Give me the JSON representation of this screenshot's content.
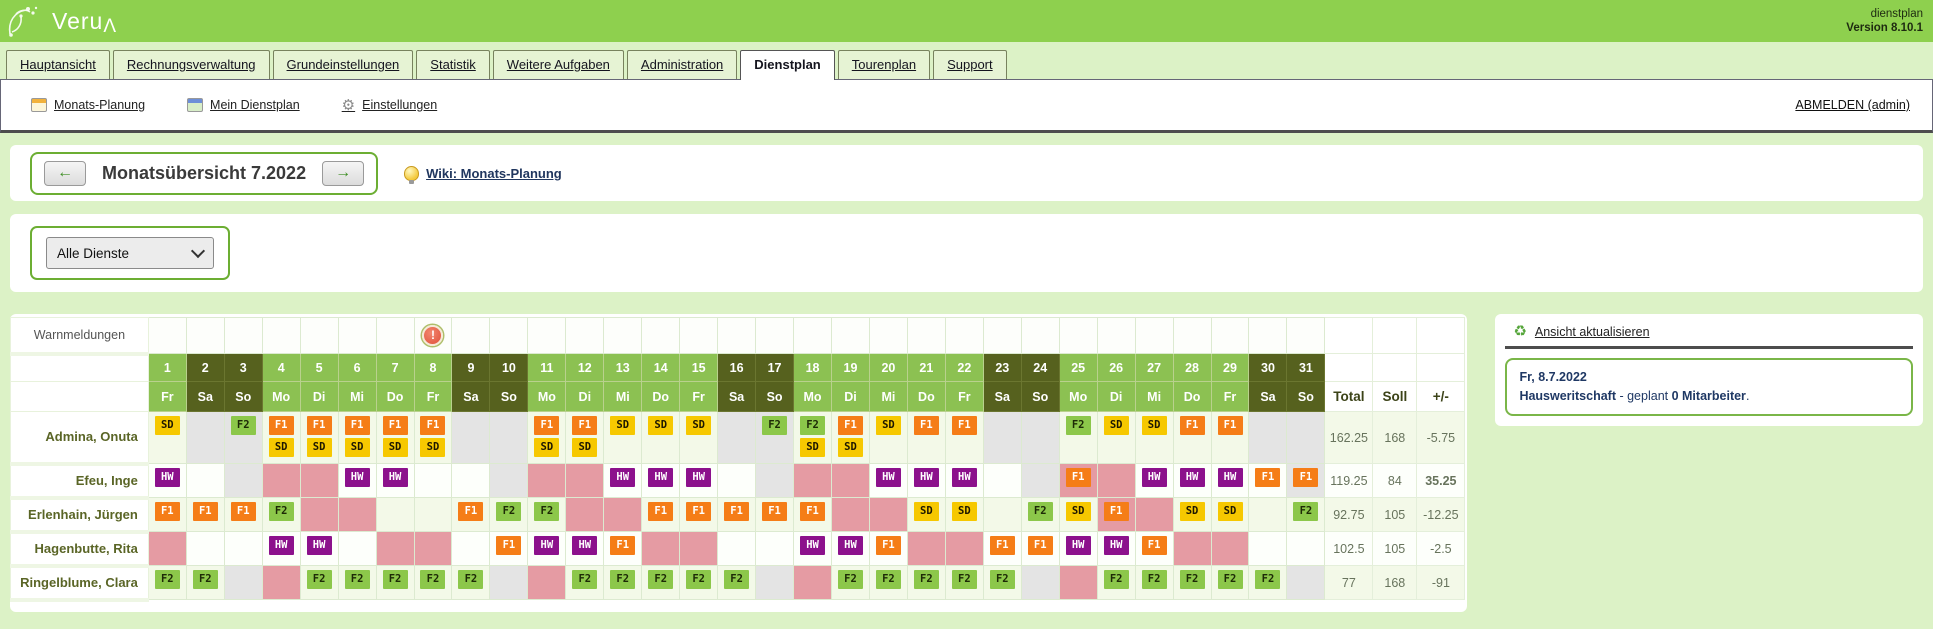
{
  "header": {
    "logo": "Veru",
    "logo_cap": "Λ",
    "app_name": "dienstplan",
    "version": "Version 8.10.1"
  },
  "tabs": [
    {
      "label": "Hauptansicht",
      "active": false
    },
    {
      "label": "Rechnungsverwaltung",
      "active": false
    },
    {
      "label": "Grundeinstellungen",
      "active": false
    },
    {
      "label": "Statistik",
      "active": false
    },
    {
      "label": "Weitere Aufgaben",
      "active": false
    },
    {
      "label": "Administration",
      "active": false
    },
    {
      "label": "Dienstplan",
      "active": true
    },
    {
      "label": "Tourenplan",
      "active": false
    },
    {
      "label": "Support",
      "active": false
    }
  ],
  "toolbar": {
    "items": [
      {
        "icon": "month-planning-calendar-icon",
        "label": "Monats-Planung"
      },
      {
        "icon": "my-roster-calendar-icon",
        "label": "Mein Dienstplan"
      },
      {
        "icon": "gear-icon",
        "label": "Einstellungen"
      }
    ],
    "logout_label": "ABMELDEN (admin)"
  },
  "month_nav": {
    "prev": "←",
    "next": "→",
    "title": "Monatsübersicht 7.2022",
    "wiki_label": "Wiki: Monats-Planung"
  },
  "filter": {
    "selected_option": "Alle Dienste"
  },
  "roster": {
    "warn_label": "Warnmeldungen",
    "warning_day": 8,
    "warning_glyph": "!",
    "summary_headers": [
      "Total",
      "Soll",
      "+/-"
    ],
    "days": [
      {
        "d": "1",
        "w": "Fr"
      },
      {
        "d": "2",
        "w": "Sa"
      },
      {
        "d": "3",
        "w": "So"
      },
      {
        "d": "4",
        "w": "Mo"
      },
      {
        "d": "5",
        "w": "Di"
      },
      {
        "d": "6",
        "w": "Mi"
      },
      {
        "d": "7",
        "w": "Do"
      },
      {
        "d": "8",
        "w": "Fr"
      },
      {
        "d": "9",
        "w": "Sa"
      },
      {
        "d": "10",
        "w": "So"
      },
      {
        "d": "11",
        "w": "Mo"
      },
      {
        "d": "12",
        "w": "Di"
      },
      {
        "d": "13",
        "w": "Mi"
      },
      {
        "d": "14",
        "w": "Do"
      },
      {
        "d": "15",
        "w": "Fr"
      },
      {
        "d": "16",
        "w": "Sa"
      },
      {
        "d": "17",
        "w": "So"
      },
      {
        "d": "18",
        "w": "Mo"
      },
      {
        "d": "19",
        "w": "Di"
      },
      {
        "d": "20",
        "w": "Mi"
      },
      {
        "d": "21",
        "w": "Do"
      },
      {
        "d": "22",
        "w": "Fr"
      },
      {
        "d": "23",
        "w": "Sa"
      },
      {
        "d": "24",
        "w": "So"
      },
      {
        "d": "25",
        "w": "Mo"
      },
      {
        "d": "26",
        "w": "Di"
      },
      {
        "d": "27",
        "w": "Mi"
      },
      {
        "d": "28",
        "w": "Do"
      },
      {
        "d": "29",
        "w": "Fr"
      },
      {
        "d": "30",
        "w": "Sa"
      },
      {
        "d": "31",
        "w": "So"
      }
    ],
    "shift_colors": {
      "SD": {
        "bg": "#f6c800",
        "fg": "#1d1700"
      },
      "F1": {
        "bg": "#f57d17",
        "fg": "#ffffff"
      },
      "F2": {
        "bg": "#8cc74a",
        "fg": "#1d2a06"
      },
      "HW": {
        "bg": "#8c118c",
        "fg": "#ffffff"
      }
    },
    "cell_colors": {
      "absence_pink": "#e59ba3",
      "weekend_gray": "#e4e4e4",
      "row_tint": "#f3f9e8",
      "row_plain": "#fdfffb"
    },
    "employees": [
      {
        "name": "Admina, Onuta",
        "tall": true,
        "tint": true,
        "gray": [
          2,
          3,
          9,
          10,
          16,
          17,
          23,
          24,
          30,
          31
        ],
        "pink": [],
        "shifts": {
          "1": [
            "SD"
          ],
          "3": [
            "F2"
          ],
          "4": [
            "F1",
            "SD"
          ],
          "5": [
            "F1",
            "SD"
          ],
          "6": [
            "F1",
            "SD"
          ],
          "7": [
            "F1",
            "SD"
          ],
          "8": [
            "F1",
            "SD"
          ],
          "11": [
            "F1",
            "SD"
          ],
          "12": [
            "F1",
            "SD"
          ],
          "13": [
            "SD"
          ],
          "14": [
            "SD"
          ],
          "15": [
            "SD"
          ],
          "17": [
            "F2"
          ],
          "18": [
            "F2",
            "SD"
          ],
          "19": [
            "F1",
            "SD"
          ],
          "20": [
            "SD"
          ],
          "21": [
            "F1"
          ],
          "22": [
            "F1"
          ],
          "25": [
            "F2"
          ],
          "26": [
            "SD"
          ],
          "27": [
            "SD"
          ],
          "28": [
            "F1"
          ],
          "29": [
            "F1"
          ]
        },
        "total": "162.25",
        "soll": "168",
        "diff": "-5.75",
        "diff_red": false
      },
      {
        "name": "Efeu, Inge",
        "tall": false,
        "tint": false,
        "gray": [
          3,
          10,
          17,
          24,
          31
        ],
        "pink": [
          4,
          5,
          11,
          12,
          18,
          19,
          25,
          26
        ],
        "shifts": {
          "1": [
            "HW"
          ],
          "6": [
            "HW"
          ],
          "7": [
            "HW"
          ],
          "13": [
            "HW"
          ],
          "14": [
            "HW"
          ],
          "15": [
            "HW"
          ],
          "20": [
            "HW"
          ],
          "21": [
            "HW"
          ],
          "22": [
            "HW"
          ],
          "25": [
            "F1"
          ],
          "27": [
            "HW"
          ],
          "28": [
            "HW"
          ],
          "29": [
            "HW"
          ],
          "30": [
            "F1"
          ],
          "31": [
            "F1"
          ]
        },
        "total": "119.25",
        "soll": "84",
        "diff": "35.25",
        "diff_red": true
      },
      {
        "name": "Erlenhain, Jürgen",
        "tall": false,
        "tint": true,
        "gray": [],
        "pink": [
          5,
          6,
          12,
          13,
          19,
          20,
          26,
          27
        ],
        "shifts": {
          "1": [
            "F1"
          ],
          "2": [
            "F1"
          ],
          "3": [
            "F1"
          ],
          "4": [
            "F2"
          ],
          "9": [
            "F1"
          ],
          "10": [
            "F2"
          ],
          "11": [
            "F2"
          ],
          "14": [
            "F1"
          ],
          "15": [
            "F1"
          ],
          "16": [
            "F1"
          ],
          "17": [
            "F1"
          ],
          "18": [
            "F1"
          ],
          "21": [
            "SD"
          ],
          "22": [
            "SD"
          ],
          "24": [
            "F2"
          ],
          "25": [
            "SD"
          ],
          "26": [
            "F1"
          ],
          "28": [
            "SD"
          ],
          "29": [
            "SD"
          ],
          "31": [
            "F2"
          ]
        },
        "total": "92.75",
        "soll": "105",
        "diff": "-12.25",
        "diff_red": false
      },
      {
        "name": "Hagenbutte, Rita",
        "tall": false,
        "tint": false,
        "gray": [],
        "pink": [
          1,
          7,
          8,
          14,
          15,
          21,
          22,
          28,
          29
        ],
        "shifts": {
          "4": [
            "HW"
          ],
          "5": [
            "HW"
          ],
          "10": [
            "F1"
          ],
          "11": [
            "HW"
          ],
          "12": [
            "HW"
          ],
          "13": [
            "F1"
          ],
          "18": [
            "HW"
          ],
          "19": [
            "HW"
          ],
          "20": [
            "F1"
          ],
          "23": [
            "F1"
          ],
          "24": [
            "F1"
          ],
          "25": [
            "HW"
          ],
          "26": [
            "HW"
          ],
          "27": [
            "F1"
          ]
        },
        "total": "102.5",
        "soll": "105",
        "diff": "-2.5",
        "diff_red": false
      },
      {
        "name": "Ringelblume, Clara",
        "tall": false,
        "tint": true,
        "gray": [
          3,
          10,
          17,
          24,
          31
        ],
        "pink": [
          4,
          11,
          18,
          25
        ],
        "shifts": {
          "1": [
            "F2"
          ],
          "2": [
            "F2"
          ],
          "5": [
            "F2"
          ],
          "6": [
            "F2"
          ],
          "7": [
            "F2"
          ],
          "8": [
            "F2"
          ],
          "9": [
            "F2"
          ],
          "12": [
            "F2"
          ],
          "13": [
            "F2"
          ],
          "14": [
            "F2"
          ],
          "15": [
            "F2"
          ],
          "16": [
            "F2"
          ],
          "19": [
            "F2"
          ],
          "20": [
            "F2"
          ],
          "21": [
            "F2"
          ],
          "22": [
            "F2"
          ],
          "23": [
            "F2"
          ],
          "26": [
            "F2"
          ],
          "27": [
            "F2"
          ],
          "28": [
            "F2"
          ],
          "29": [
            "F2"
          ],
          "30": [
            "F2"
          ]
        },
        "total": "77",
        "soll": "168",
        "diff": "-91",
        "diff_red": false
      }
    ]
  },
  "right_panel": {
    "refresh_label": "Ansicht aktualisieren",
    "date_line": "Fr, 8.7.2022",
    "dept_name": "Hausweritschaft",
    "middle_text": " - geplant ",
    "count_text": "0 Mitarbeiter",
    "tail_text": "."
  }
}
